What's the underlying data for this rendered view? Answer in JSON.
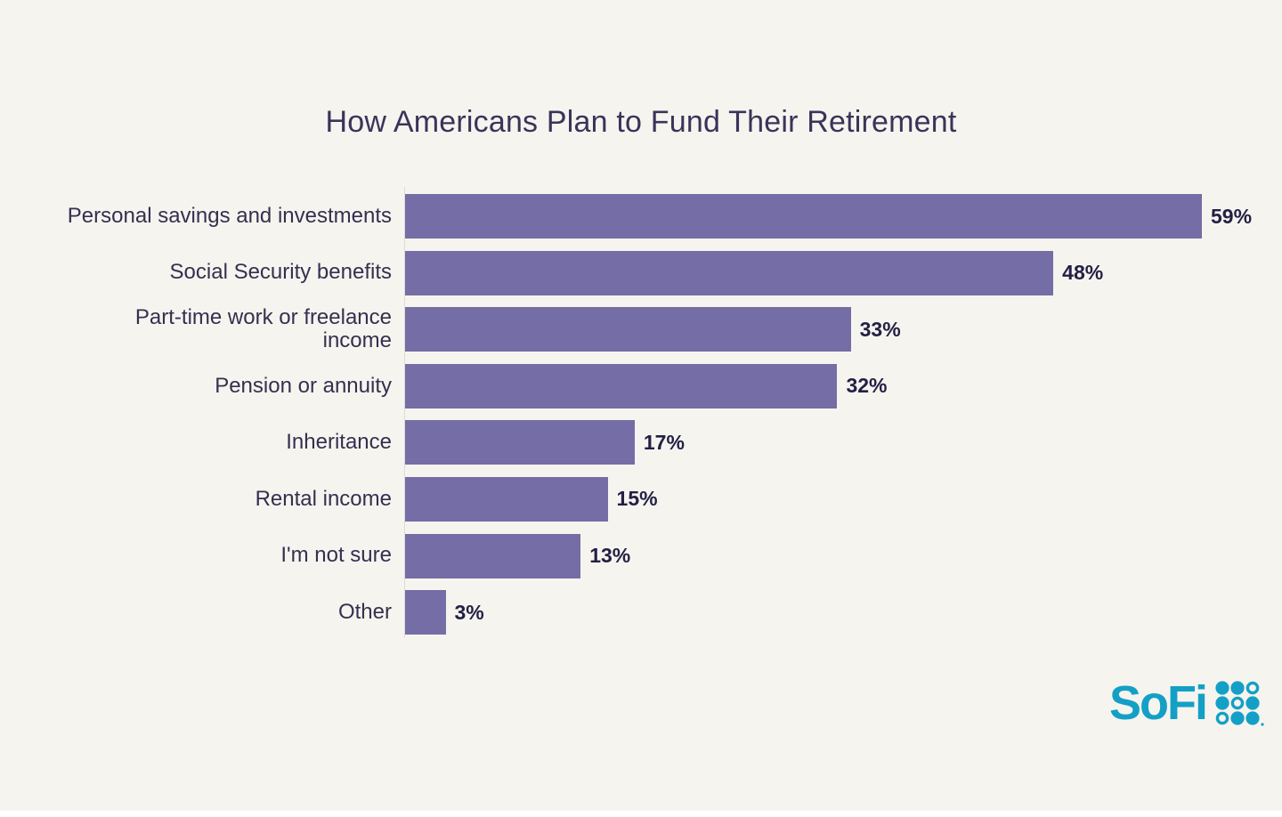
{
  "title": "How Americans Plan to Fund Their Retirement",
  "chart_data": {
    "type": "bar",
    "orientation": "horizontal",
    "title": "How Americans Plan to Fund Their Retirement",
    "xlabel": "",
    "ylabel": "",
    "xlim": [
      0,
      62
    ],
    "grid": false,
    "legend": "none",
    "bar_color": "#756DA5",
    "categories": [
      "Personal savings and investments",
      "Social Security benefits",
      "Part-time work or freelance\nincome",
      "Pension or annuity",
      "Inheritance",
      "Rental income",
      "I'm not sure",
      "Other"
    ],
    "values": [
      59,
      48,
      33,
      32,
      17,
      15,
      13,
      3
    ],
    "value_labels": [
      "59%",
      "48%",
      "33%",
      "32%",
      "17%",
      "15%",
      "13%",
      "3%"
    ]
  },
  "branding": {
    "logo_text": "SoFi",
    "logo_color": "#14A0C6",
    "dot_pattern": [
      "ffo",
      "fof",
      "off"
    ]
  },
  "colors": {
    "background": "#F6F4EF",
    "bar": "#756DA5",
    "title_text": "#3A3459",
    "label_text": "#35304F",
    "value_text": "#232045",
    "axis_line": "#DEDBD5"
  }
}
